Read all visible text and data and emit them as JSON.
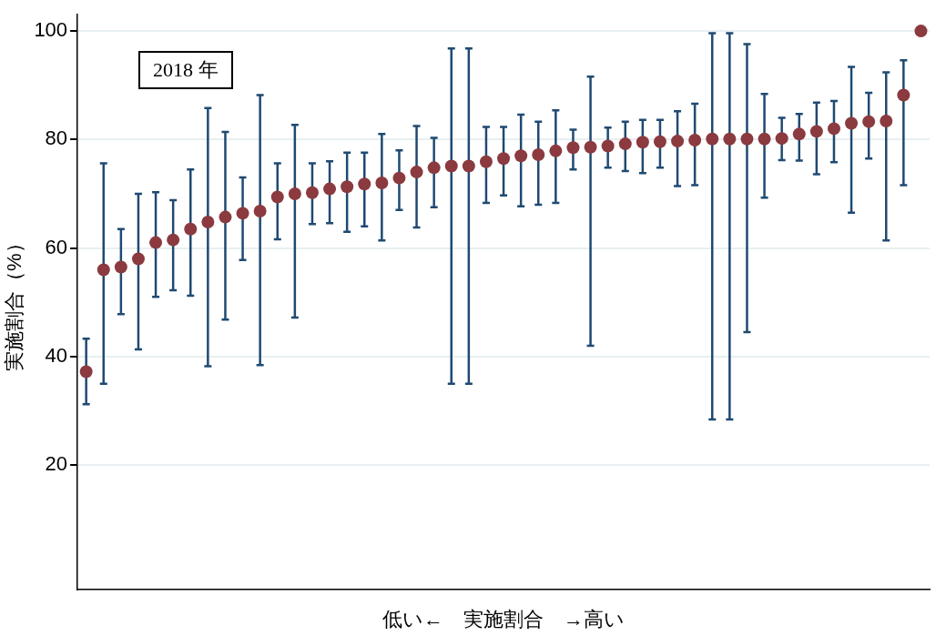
{
  "chart_data": {
    "type": "scatter",
    "annotations": [
      "2018 年"
    ],
    "xlabel": "低い←　実施割合　→高い",
    "ylabel": "実施割合（%）",
    "categories": [
      null,
      null,
      null,
      null,
      null,
      null,
      null,
      null,
      null,
      null,
      null,
      null,
      null,
      null,
      null,
      null,
      null,
      null,
      null,
      null,
      null,
      null,
      null,
      null,
      null,
      null,
      null,
      null,
      null,
      null,
      null,
      null,
      null,
      null,
      null,
      null,
      null,
      null,
      null,
      null,
      null,
      null,
      null,
      null,
      null,
      null,
      null,
      null,
      null
    ],
    "series": [
      {
        "color": "#8b3a3f",
        "values": [
          37.2,
          56,
          56.5,
          58,
          61,
          61.5,
          63.5,
          64.8,
          65.7,
          66.4,
          66.8,
          69.4,
          70,
          70.2,
          70.9,
          71.3,
          71.8,
          72,
          72.9,
          74,
          74.8,
          75.1,
          75.1,
          75.9,
          76.5,
          77,
          77.2,
          77.9,
          78.5,
          78.6,
          78.8,
          79.2,
          79.5,
          79.6,
          79.7,
          79.9,
          80.1,
          80.1,
          80.1,
          80.1,
          80.2,
          81,
          81.5,
          82,
          83,
          83.3,
          83.4,
          88.2,
          100
        ],
        "errors": [
          [
            31.2,
            43.3
          ],
          [
            35,
            75.6
          ],
          [
            47.8,
            63.5
          ],
          [
            41.3,
            70
          ],
          [
            51,
            70.3
          ],
          [
            52.2,
            68.8
          ],
          [
            51.2,
            74.5
          ],
          [
            38.2,
            85.8
          ],
          [
            46.8,
            81.4
          ],
          [
            57.8,
            73
          ],
          [
            38.4,
            88.2
          ],
          [
            61.6,
            75.6
          ],
          [
            47.2,
            82.7
          ],
          [
            64.4,
            75.6
          ],
          [
            64.6,
            76
          ],
          [
            63,
            77.6
          ],
          [
            64,
            77.6
          ],
          [
            61.4,
            81
          ],
          [
            67,
            78
          ],
          [
            63.8,
            82.5
          ],
          [
            67.5,
            80.3
          ],
          [
            35,
            96.8
          ],
          [
            35,
            96.8
          ],
          [
            68.3,
            82.3
          ],
          [
            69.7,
            82.3
          ],
          [
            67.7,
            84.6
          ],
          [
            68,
            83.3
          ],
          [
            68.3,
            85.4
          ],
          [
            74.5,
            81.8
          ],
          [
            42,
            91.6
          ],
          [
            74.8,
            82.2
          ],
          [
            74.2,
            83.3
          ],
          [
            73.8,
            83.6
          ],
          [
            74.8,
            83.6
          ],
          [
            71.4,
            85.2
          ],
          [
            71.6,
            86.6
          ],
          [
            28.4,
            99.6
          ],
          [
            28.4,
            99.6
          ],
          [
            44.5,
            97.6
          ],
          [
            69.3,
            88.4
          ],
          [
            76.2,
            84
          ],
          [
            76.1,
            84.7
          ],
          [
            73.6,
            86.8
          ],
          [
            75.8,
            87.1
          ],
          [
            66.5,
            93.4
          ],
          [
            76.5,
            88.6
          ],
          [
            61.4,
            92.4
          ],
          [
            71.6,
            94.6
          ],
          null
        ]
      }
    ],
    "ylim": [
      -3,
      103
    ],
    "yticks": [
      20,
      40,
      60,
      80,
      100
    ],
    "grid": "y",
    "legend": false,
    "marker": "circle"
  }
}
